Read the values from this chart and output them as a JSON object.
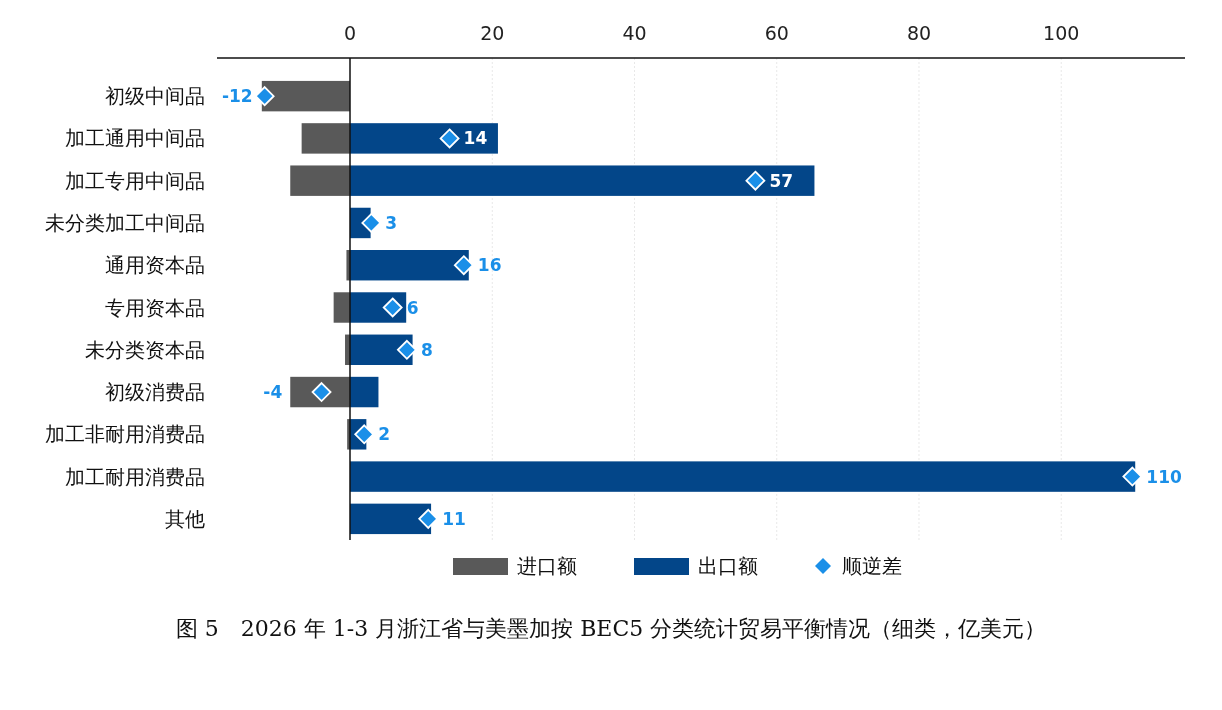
{
  "chart_data": {
    "type": "bar",
    "orientation": "horizontal",
    "stacked": true,
    "title": "图 5　2026 年 1-3 月浙江省与美墨加按 BEC5 分类统计贸易平衡情况（细类，亿美元）",
    "categories": [
      "初级中间品",
      "加工通用中间品",
      "加工专用中间品",
      "未分类加工中间品",
      "通用资本品",
      "专用资本品",
      "未分类资本品",
      "初级消费品",
      "加工非耐用消费品",
      "加工耐用消费品",
      "其他"
    ],
    "series": [
      {
        "name": "进口额",
        "type": "bar",
        "color": "#595959",
        "values": [
          -12.4,
          -6.8,
          -8.4,
          0,
          -0.5,
          -2.3,
          -0.7,
          -8.4,
          -0.4,
          null,
          0
        ]
      },
      {
        "name": "出口额",
        "type": "bar",
        "color": "#034689",
        "values": [
          null,
          20.8,
          65.3,
          2.9,
          16.7,
          7.9,
          8.8,
          4.0,
          2.3,
          110.4,
          11.4
        ]
      },
      {
        "name": "顺逆差",
        "type": "scatter",
        "marker": "diamond",
        "color": "#1a8fe8",
        "values": [
          -12,
          14,
          57,
          3,
          16,
          6,
          8,
          -4,
          2,
          110,
          11
        ],
        "value_labels": [
          "-12",
          "14",
          "57",
          "3",
          "16",
          "6",
          "8",
          "-4",
          "2",
          "110",
          "11"
        ]
      }
    ],
    "xlim": [
      -18.7,
      117.4
    ],
    "xticks": [
      0,
      20,
      40,
      60,
      80,
      100
    ],
    "grid": "x",
    "legend": "bottom"
  }
}
